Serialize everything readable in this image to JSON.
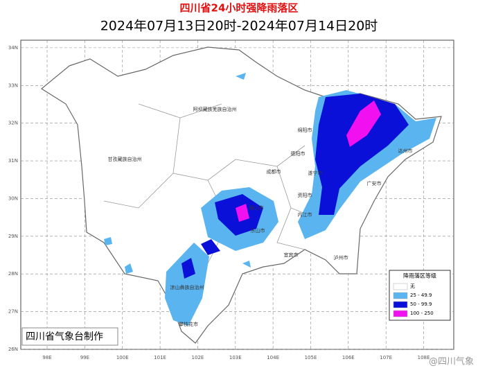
{
  "title": "四川省24小时强降雨落区",
  "subtitle": "2024年07月13日20时-2024年07月14日20时",
  "map": {
    "xticks": [
      {
        "value": 98,
        "label": "98E"
      },
      {
        "value": 99,
        "label": "99E"
      },
      {
        "value": 100,
        "label": "100E"
      },
      {
        "value": 101,
        "label": "101E"
      },
      {
        "value": 102,
        "label": "102E"
      },
      {
        "value": 103,
        "label": "103E"
      },
      {
        "value": 104,
        "label": "104E"
      },
      {
        "value": 105,
        "label": "105E"
      },
      {
        "value": 106,
        "label": "106E"
      },
      {
        "value": 107,
        "label": "107E"
      },
      {
        "value": 108,
        "label": "108E"
      }
    ],
    "yticks": [
      {
        "value": 34,
        "label": "34N"
      },
      {
        "value": 33,
        "label": "33N"
      },
      {
        "value": 32,
        "label": "32N"
      },
      {
        "value": 31,
        "label": "31N"
      },
      {
        "value": 30,
        "label": "30N"
      },
      {
        "value": 29,
        "label": "29N"
      },
      {
        "value": 28,
        "label": "28N"
      },
      {
        "value": 27,
        "label": "27N"
      },
      {
        "value": 26,
        "label": "26N"
      }
    ],
    "xlim": [
      97.3,
      108.8
    ],
    "ylim": [
      26,
      34.2
    ],
    "regions": [
      "阿坝藏族羌族自治州",
      "甘孜藏族自治州",
      "凉山彝族自治州",
      "攀枝花市",
      "绵阳市",
      "德阳市",
      "成都市",
      "遂宁市",
      "达州市",
      "广安市",
      "资阳市",
      "内江市",
      "眉山市",
      "乐山市",
      "宜宾市",
      "泸州市"
    ]
  },
  "legend": {
    "title": "降雨落区等级",
    "items": [
      {
        "label": "无",
        "color": "#ffffff"
      },
      {
        "label": "25 - 49.9",
        "color": "#5ab4ef"
      },
      {
        "label": "50 - 99.9",
        "color": "#0a10d8"
      },
      {
        "label": "100 - 250",
        "color": "#f010f0"
      }
    ]
  },
  "footer": "四川省气象台制作",
  "watermark": "@四川气象"
}
